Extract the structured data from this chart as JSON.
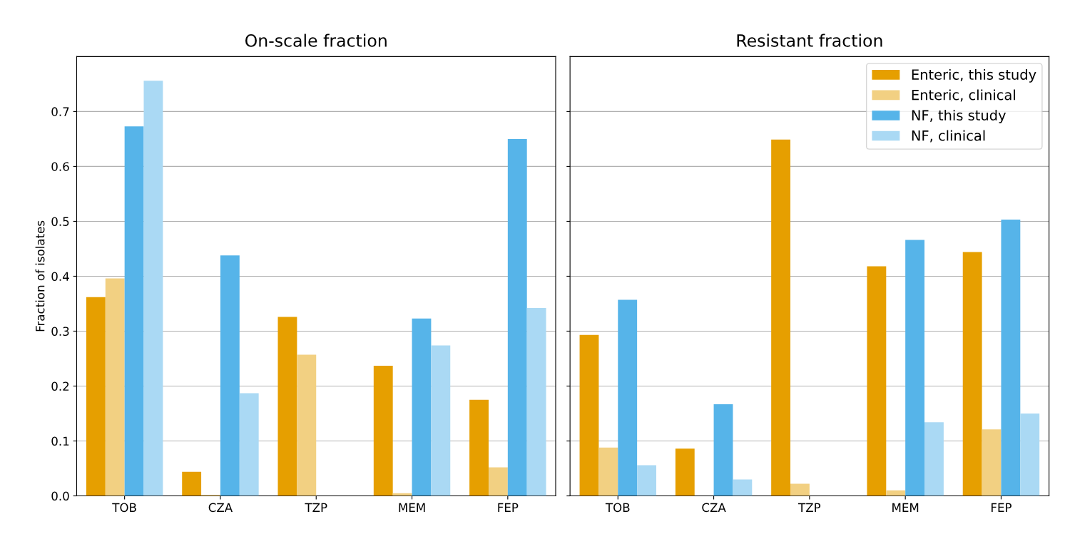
{
  "chart_data": [
    {
      "type": "bar",
      "title": "On-scale fraction",
      "ylabel": "Fraction of isolates",
      "categories": [
        "TOB",
        "CZA",
        "TZP",
        "MEM",
        "FEP"
      ],
      "ylim": [
        0,
        0.8
      ],
      "yticks": [
        {
          "value": 0,
          "label": "0.0"
        },
        0.1,
        0.2,
        0.3,
        0.4,
        0.5,
        0.6,
        0.7
      ],
      "grid": "y",
      "series": [
        {
          "color": "#e69f00",
          "values": [
            0.362,
            0.044,
            0.326,
            0.237,
            0.175
          ]
        },
        {
          "color": "#f2d082",
          "values": [
            0.396,
            0.002,
            0.257,
            0.005,
            0.052
          ]
        },
        {
          "color": "#56b4e9",
          "values": [
            0.673,
            0.438,
            0,
            0.323,
            0.65
          ]
        },
        {
          "color": "#aad9f4",
          "values": [
            0.756,
            0.187,
            0,
            0.274,
            0.342
          ]
        }
      ]
    },
    {
      "type": "bar",
      "title": "Resistant fraction",
      "categories": [
        "TOB",
        "CZA",
        "TZP",
        "MEM",
        "FEP"
      ],
      "ylim": [
        0,
        0.8
      ],
      "yticks": [
        0,
        0.1,
        0.2,
        0.3,
        0.4,
        0.5,
        0.6,
        0.7
      ],
      "grid": "y",
      "legend": "top right",
      "tick_labels": "x",
      "series": [
        {
          "name": "Enteric, this study",
          "color": "#e69f00",
          "values": [
            0.293,
            0.086,
            0.649,
            0.418,
            0.444
          ]
        },
        {
          "name": "Enteric, clinical",
          "color": "#f2d082",
          "values": [
            0.088,
            0,
            0.022,
            0.01,
            0.121
          ]
        },
        {
          "name": "NF, this study",
          "color": "#56b4e9",
          "values": [
            0.357,
            0.167,
            0,
            0.466,
            0.503
          ]
        },
        {
          "name": "NF, clinical",
          "color": "#aad9f4",
          "values": [
            0.056,
            0.03,
            0,
            0.134,
            0.15
          ]
        }
      ]
    }
  ]
}
